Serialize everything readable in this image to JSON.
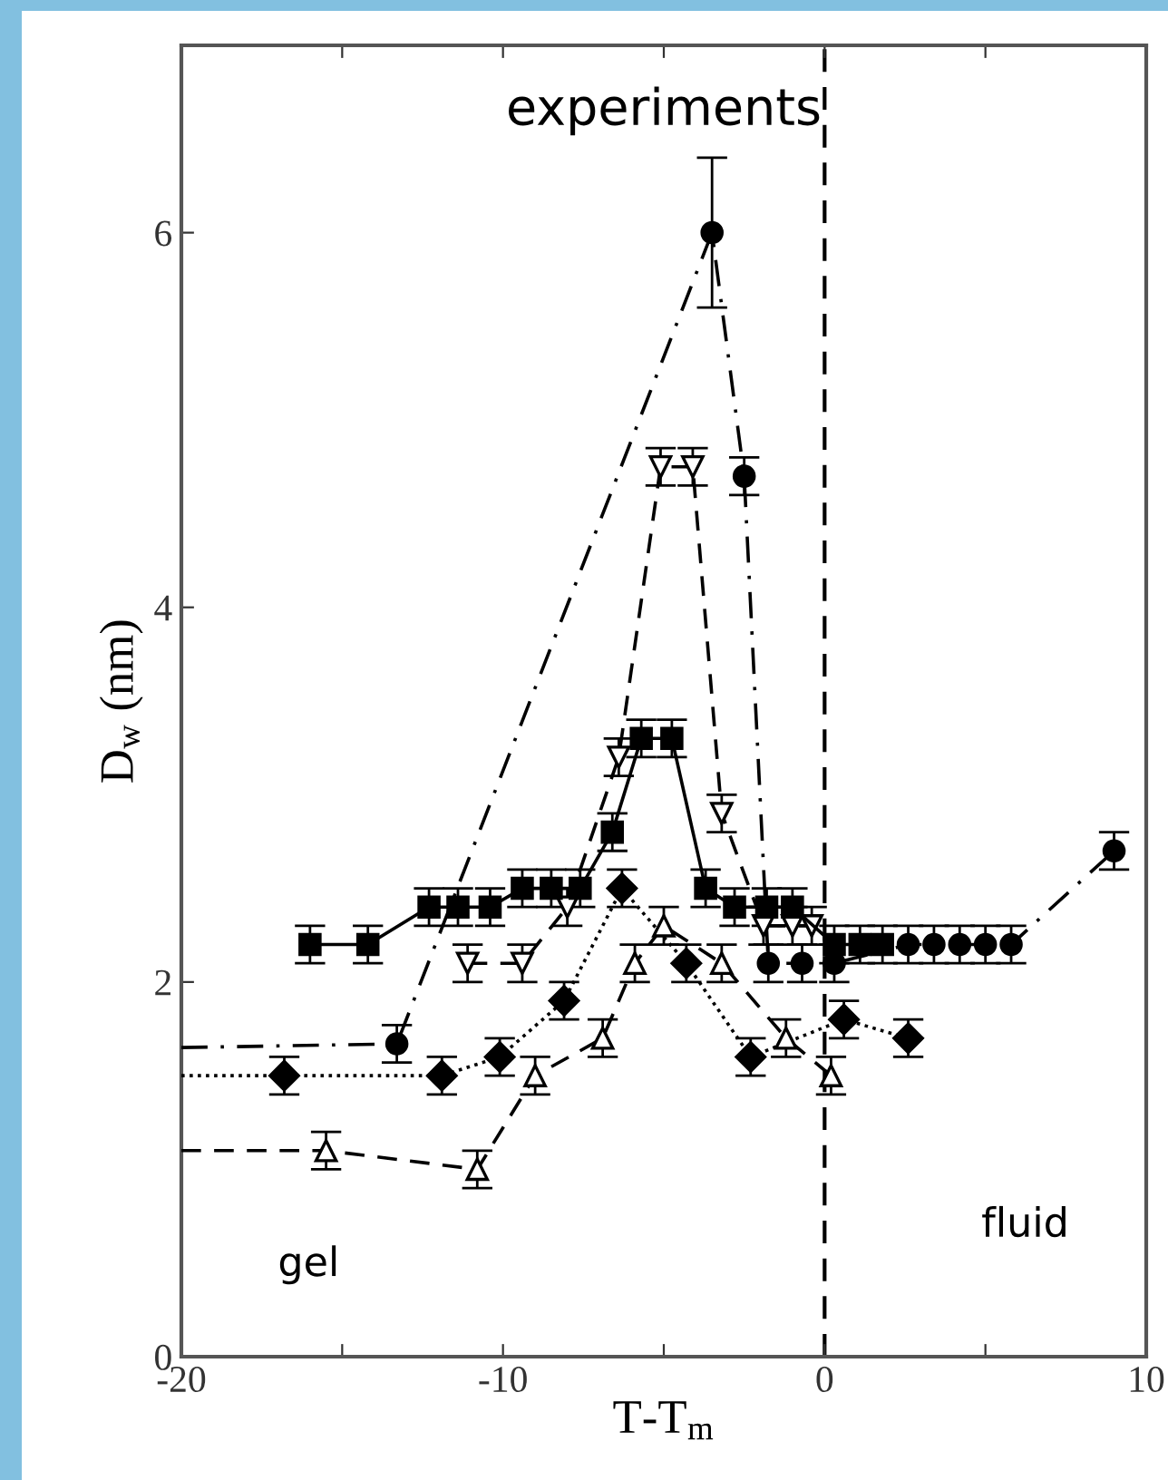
{
  "chart_data": {
    "type": "line",
    "xlabel": "T-T$_{m}$",
    "ylabel": "D$_{w}$ (nm)",
    "xlim": [
      -20,
      10
    ],
    "ylim": [
      0,
      7
    ],
    "xticks": [
      -20,
      {
        "value": -15,
        "label": null
      },
      -10,
      {
        "value": -5,
        "label": null
      },
      0,
      {
        "value": 5,
        "label": null
      },
      10
    ],
    "yticks": [
      0,
      2,
      4,
      6
    ],
    "grid": false,
    "legend": false,
    "ref_lines": [
      {
        "axis": "x",
        "value": 0,
        "line_style": "dashed",
        "color": "#000000"
      }
    ],
    "annotations": [
      "experiments",
      "gel",
      "fluid"
    ],
    "series": [
      {
        "color": "#000000",
        "marker": "circle",
        "line_style": "dashdot",
        "x": [
          -20,
          -13.3,
          -3.5,
          -2.5,
          -1.75,
          -0.7,
          0.3,
          2.6,
          3.4,
          4.2,
          5.0,
          5.8,
          9.0
        ],
        "values": [
          1.65,
          1.67,
          6.0,
          4.7,
          2.1,
          2.1,
          2.1,
          2.2,
          2.2,
          2.2,
          2.2,
          2.2,
          2.7
        ],
        "errors": [
          null,
          0.1,
          0.4,
          0.1,
          0.1,
          0.1,
          0.1,
          0.1,
          0.1,
          0.1,
          0.1,
          0.1,
          0.1
        ]
      },
      {
        "color": "#000000",
        "marker": "triangle-down",
        "line_style": "dashed",
        "x": [
          -11.1,
          -9.4,
          -8.0,
          -6.4,
          -5.1,
          -4.1,
          -3.2,
          -1.9,
          -1.0,
          -0.4
        ],
        "values": [
          2.1,
          2.1,
          2.4,
          3.2,
          4.75,
          4.75,
          2.9,
          2.3,
          2.3,
          2.3
        ],
        "errors": [
          0.1,
          0.1,
          0.1,
          0.1,
          0.1,
          0.1,
          0.1,
          0.1,
          0.1,
          0.1
        ]
      },
      {
        "color": "#000000",
        "marker": "square",
        "line_style": "solid",
        "x": [
          -16.0,
          -14.2,
          -12.3,
          -11.4,
          -10.4,
          -9.4,
          -8.5,
          -7.6,
          -6.6,
          -5.7,
          -4.75,
          -3.7,
          -2.8,
          -1.8,
          -1.0,
          0.3,
          1.1,
          1.8
        ],
        "values": [
          2.2,
          2.2,
          2.4,
          2.4,
          2.4,
          2.5,
          2.5,
          2.5,
          2.8,
          3.3,
          3.3,
          2.5,
          2.4,
          2.4,
          2.4,
          2.2,
          2.2,
          2.2
        ],
        "errors": [
          0.1,
          0.1,
          0.1,
          0.1,
          0.1,
          0.1,
          0.1,
          0.1,
          0.1,
          0.1,
          0.1,
          0.1,
          0.1,
          0.1,
          0.1,
          0.1,
          0.1,
          0.1
        ]
      },
      {
        "color": "#000000",
        "marker": "diamond",
        "line_style": "dotted",
        "x": [
          -20,
          -16.8,
          -11.9,
          -10.1,
          -8.1,
          -6.3,
          -4.3,
          -2.3,
          0.6,
          2.6
        ],
        "values": [
          1.5,
          1.5,
          1.5,
          1.6,
          1.9,
          2.5,
          2.1,
          1.6,
          1.8,
          1.7
        ],
        "errors": [
          null,
          0.1,
          0.1,
          0.1,
          0.1,
          0.1,
          0.1,
          0.1,
          0.1,
          0.1
        ]
      },
      {
        "color": "#000000",
        "marker": "triangle",
        "line_style": "dashed",
        "x": [
          -20,
          -15.5,
          -10.8,
          -9.0,
          -6.9,
          -5.9,
          -5.0,
          -3.2,
          -1.2,
          0.2
        ],
        "values": [
          1.1,
          1.1,
          1.0,
          1.5,
          1.7,
          2.1,
          2.3,
          2.1,
          1.7,
          1.5
        ],
        "errors": [
          null,
          0.1,
          0.1,
          0.1,
          0.1,
          0.1,
          0.1,
          0.1,
          0.1,
          0.1
        ]
      }
    ]
  }
}
